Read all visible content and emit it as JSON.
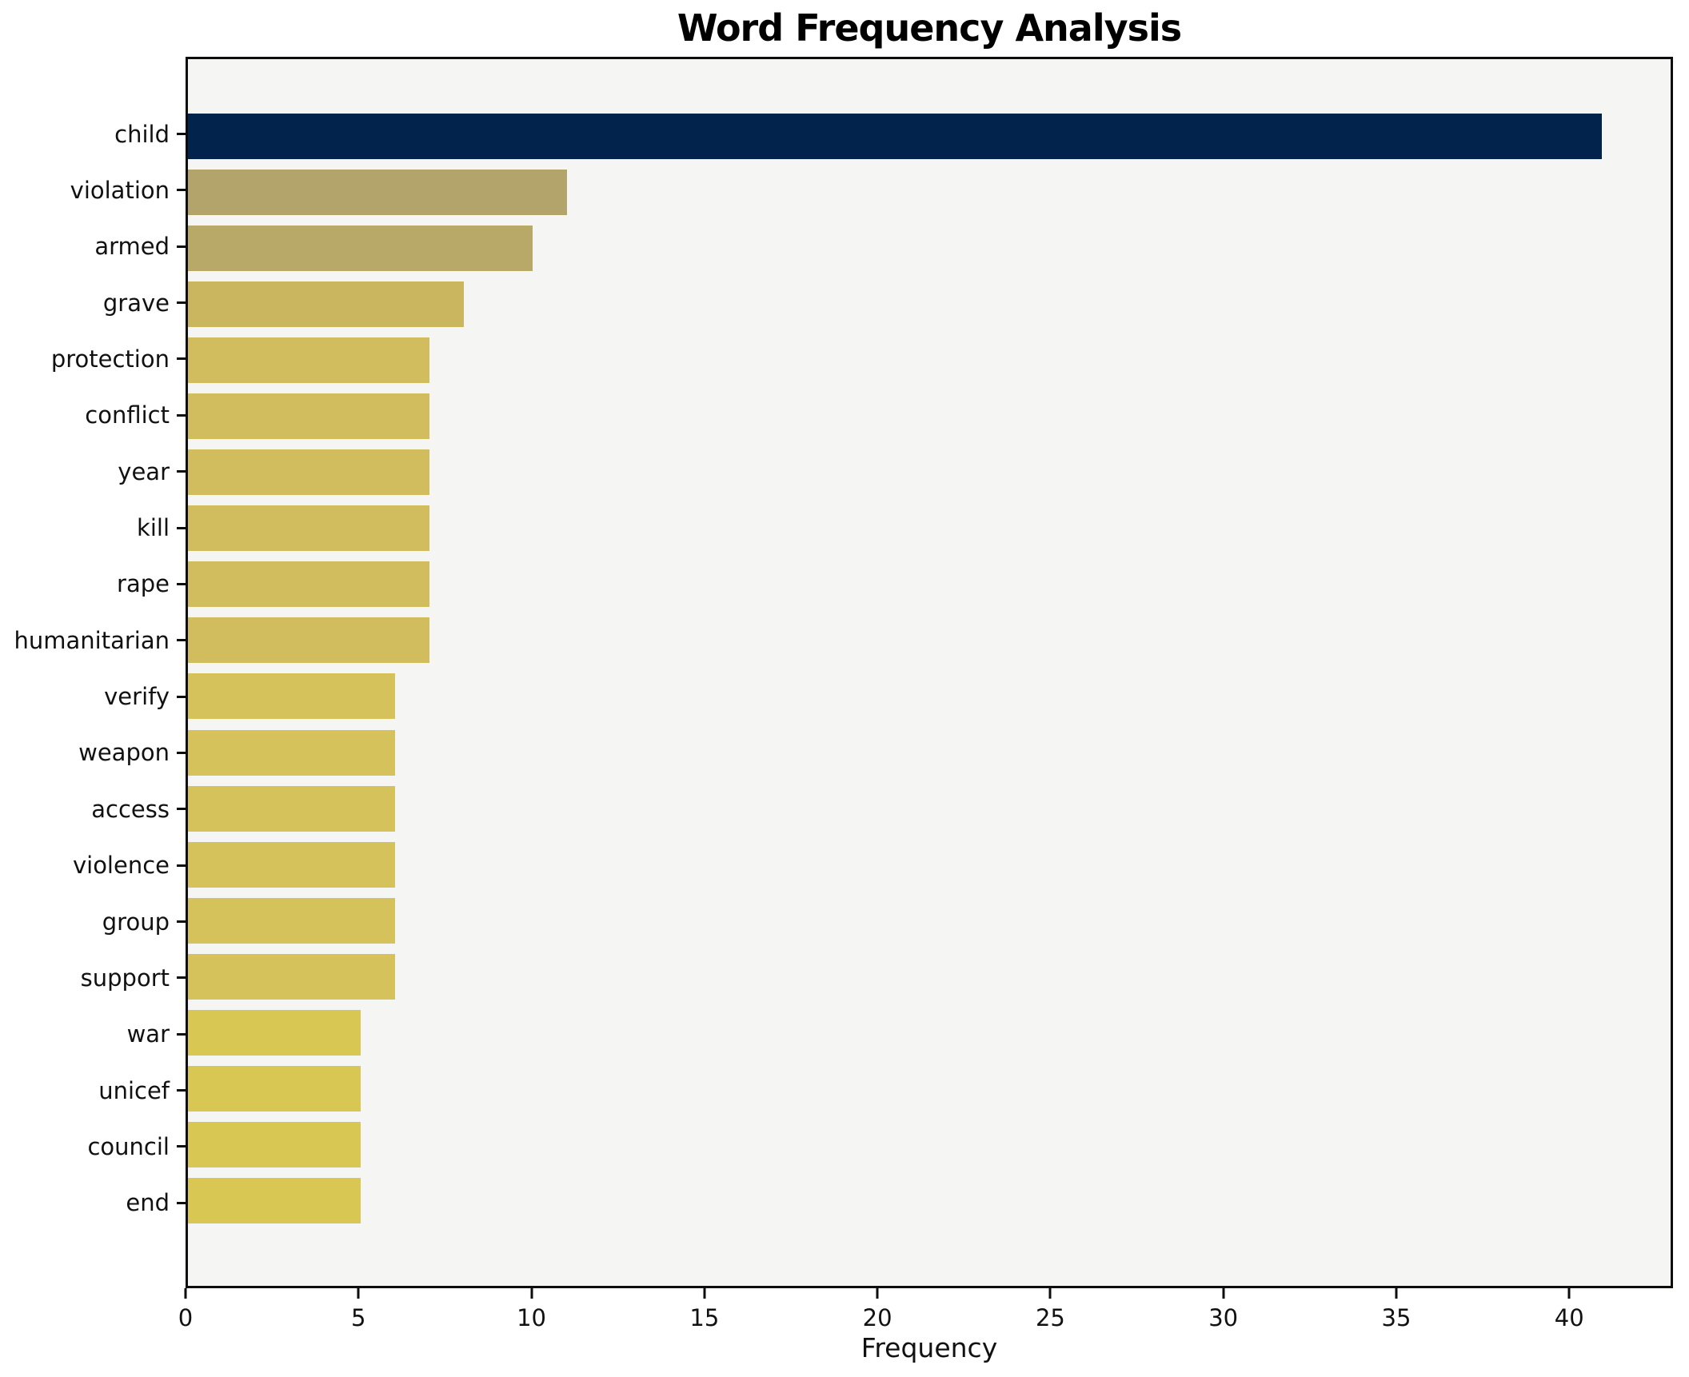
{
  "chart_data": {
    "type": "bar",
    "orientation": "horizontal",
    "title": "Word Frequency Analysis",
    "xlabel": "Frequency",
    "ylabel": "",
    "categories": [
      "child",
      "violation",
      "armed",
      "grave",
      "protection",
      "conflict",
      "year",
      "kill",
      "rape",
      "humanitarian",
      "verify",
      "weapon",
      "access",
      "violence",
      "group",
      "support",
      "war",
      "unicef",
      "council",
      "end"
    ],
    "values": [
      41,
      11,
      10,
      8,
      7,
      7,
      7,
      7,
      7,
      7,
      6,
      6,
      6,
      6,
      6,
      6,
      5,
      5,
      5,
      5
    ],
    "bar_colors": [
      "#02234c",
      "#b2a46b",
      "#b9a968",
      "#c9b65f",
      "#d1bd5e",
      "#d1bd5e",
      "#d1bd5e",
      "#d1bd5e",
      "#d1bd5e",
      "#d1bd5e",
      "#d5c25a",
      "#d5c25a",
      "#d5c25a",
      "#d5c25a",
      "#d5c25a",
      "#d5c25a",
      "#d9c753",
      "#d9c753",
      "#d9c753",
      "#d9c753"
    ],
    "x_ticks": [
      0,
      5,
      10,
      15,
      20,
      25,
      30,
      35,
      40
    ],
    "xlim": [
      0,
      43
    ],
    "grid": false,
    "legend": "none",
    "plot_background": "#f5f5f3",
    "spine_color": "#0d0d0d"
  }
}
